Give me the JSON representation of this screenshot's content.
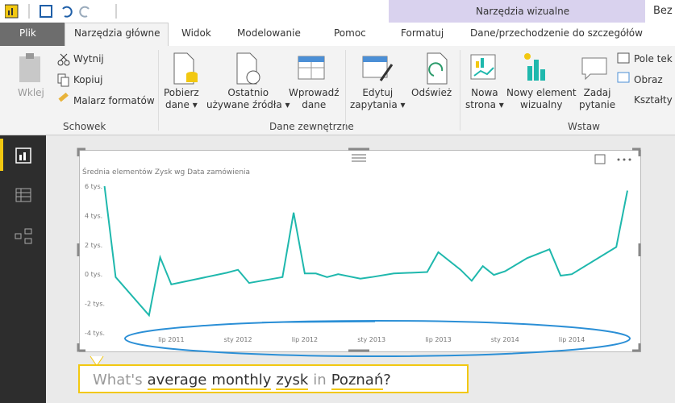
{
  "titlebar": {
    "context": "Narzędzia wizualne",
    "doc": "Bez"
  },
  "tabs": [
    "Plik",
    "Narzędzia główne",
    "Widok",
    "Modelowanie",
    "Pomoc",
    "Formatuj",
    "Dane/przechodzenie do szczegółów"
  ],
  "ribbon": {
    "clipboard": {
      "paste": "Wklej",
      "cut": "Wytnij",
      "copy": "Kopiuj",
      "painter": "Malarz formatów",
      "label": "Schowek"
    },
    "external": {
      "get": [
        "Pobierz",
        "dane"
      ],
      "recent": [
        "Ostatnio",
        "używane źródła"
      ],
      "enter": [
        "Wprowadź",
        "dane"
      ],
      "edit": [
        "Edytuj",
        "zapytania"
      ],
      "refresh": "Odśwież",
      "label": "Dane zewnętrzne"
    },
    "insert": {
      "page": [
        "Nowa",
        "strona"
      ],
      "visual": [
        "Nowy element",
        "wizualny"
      ],
      "ask": [
        "Zadaj",
        "pytanie"
      ],
      "textbox": "Pole tek",
      "image": "Obraz",
      "shapes": "Kształty",
      "label": "Wstaw"
    }
  },
  "chart_data": {
    "type": "line",
    "title": "Średnia elementów Zysk wg Data zamówienia",
    "x": [
      "2011-01",
      "2011-02",
      "2011-05",
      "2011-06",
      "2011-07",
      "2011-12",
      "2012-01",
      "2012-02",
      "2012-05",
      "2012-06",
      "2012-07",
      "2012-08",
      "2012-09",
      "2012-10",
      "2012-12",
      "2013-01",
      "2013-03",
      "2013-06",
      "2013-07",
      "2013-09",
      "2013-10",
      "2013-11",
      "2013-12",
      "2014-01",
      "2014-02",
      "2014-03",
      "2014-05",
      "2014-06",
      "2014-07",
      "2014-11",
      "2014-12"
    ],
    "series": [
      {
        "name": "Zysk",
        "color": "#1fb8ad",
        "values": [
          6.0,
          -0.2,
          -2.8,
          1.15,
          -0.7,
          0.1,
          0.3,
          -0.6,
          -0.2,
          4.2,
          0.05,
          0.05,
          -0.2,
          0,
          -0.3,
          -0.2,
          0.05,
          0.15,
          1.5,
          0.3,
          -0.45,
          0.55,
          -0.05,
          0.2,
          0.65,
          1.1,
          1.7,
          -0.1,
          0,
          1.85,
          5.7
        ]
      }
    ],
    "xlim": [
      "2010-11",
      "2014-12"
    ],
    "xticks": [
      {
        "value": "2011-07",
        "label": "lip 2011"
      },
      {
        "value": "2012-01",
        "label": "sty 2012"
      },
      {
        "value": "2012-07",
        "label": "lip 2012"
      },
      {
        "value": "2013-01",
        "label": "sty 2013"
      },
      {
        "value": "2013-07",
        "label": "lip 2013"
      },
      {
        "value": "2014-01",
        "label": "sty 2014"
      },
      {
        "value": "2014-07",
        "label": "lip 2014"
      }
    ],
    "ylim": [
      -4,
      6
    ],
    "yticks": [
      {
        "value": -4,
        "label": "-4 tys."
      },
      {
        "value": -2,
        "label": "-2 tys."
      },
      {
        "value": 0,
        "label": "0 tys."
      },
      {
        "value": 2,
        "label": "2 tys."
      },
      {
        "value": 4,
        "label": "4 tys."
      },
      {
        "value": 6,
        "label": "6 tys."
      }
    ],
    "grid": false
  },
  "qa": {
    "tokens": [
      "What's",
      "average",
      "monthly",
      "zysk",
      "in",
      "Poznań",
      "?"
    ]
  }
}
